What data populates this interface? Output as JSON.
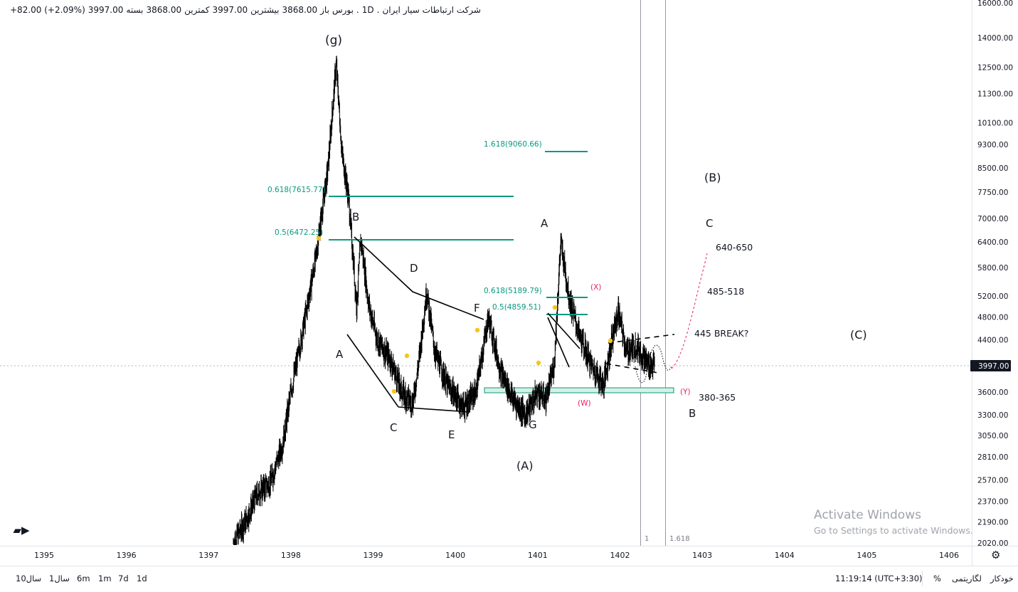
{
  "header": {
    "symbol": "شرکت ارتباطات سیار ایران",
    "interval": "1D",
    "exchange": "بورس",
    "open_label": "باز",
    "open_value": "3868.00",
    "high_label": "بیشترین",
    "high_value": "3997.00",
    "low_label": "کمترین",
    "low_value": "3868.00",
    "close_label": "بسته",
    "close_value": "3997.00",
    "change": "+82.00 (+2.09%)"
  },
  "colors": {
    "fib": "#089981",
    "pink": "#e91e63",
    "candles": "#000000",
    "yellow_marker": "#f5c518",
    "zone_fill": "#d8f0e4",
    "zone_stroke": "#089981"
  },
  "price_axis": {
    "labels": [
      "16000.00",
      "14000.00",
      "12500.00",
      "11300.00",
      "10100.00",
      "9300.00",
      "8500.00",
      "7750.00",
      "7000.00",
      "6400.00",
      "5800.00",
      "5200.00",
      "4800.00",
      "4400.00",
      "3600.00",
      "3300.00",
      "3050.00",
      "2810.00",
      "2570.00",
      "2370.00",
      "2190.00",
      "2020.00"
    ],
    "current_price": "3997.00"
  },
  "time_axis": {
    "labels": [
      "1395",
      "1396",
      "1397",
      "1398",
      "1399",
      "1400",
      "1401",
      "1402",
      "1403",
      "1404",
      "1405",
      "1406"
    ]
  },
  "fib_levels": [
    {
      "label": "0.618(7615.77)"
    },
    {
      "label": "0.5(6472.25)"
    },
    {
      "label": "1.618(9060.66)"
    },
    {
      "label": "0.618(5189.79)"
    },
    {
      "label": "0.5(4859.51)"
    }
  ],
  "wave_labels": {
    "g": "(g)",
    "A1": "A",
    "B1": "B",
    "C1": "C",
    "D1": "D",
    "E1": "E",
    "F1": "F",
    "G1": "G",
    "A_big": "(A)",
    "A2": "A",
    "B_big": "(B)",
    "C2": "C",
    "B2": "B",
    "C_big": "(C)",
    "W": "(W)",
    "X": "(X)",
    "Y": "(Y)"
  },
  "notes": {
    "n1": "640-650",
    "n2": "485-518",
    "n3": "445 BREAK?",
    "n4": "380-365"
  },
  "time_cycle": {
    "l1": "1",
    "l2": "1.618"
  },
  "watermark": {
    "line1": "Activate Windows",
    "line2": "Go to Settings to activate Windows."
  },
  "bottom_bar": {
    "timeframes": [
      "10سال",
      "1سال",
      "6m",
      "1m",
      "7d",
      "1d"
    ],
    "clock": "11:19:14 (UTC+3:30)",
    "percent": "%",
    "log": "لگاریتمی",
    "auto": "خودکار"
  },
  "chart_data": {
    "type": "candlestick",
    "title": "",
    "xlabel": "",
    "ylabel": "",
    "log_scale": true,
    "ylim": [
      2020,
      16000
    ],
    "x_range_years": [
      1394.9,
      1406.6
    ],
    "grid": false,
    "price_path": [
      [
        1397.3,
        2020
      ],
      [
        1397.45,
        2200
      ],
      [
        1397.6,
        2450
      ],
      [
        1397.75,
        2550
      ],
      [
        1397.9,
        2950
      ],
      [
        1398.0,
        3600
      ],
      [
        1398.15,
        4600
      ],
      [
        1398.3,
        6000
      ],
      [
        1398.45,
        8500
      ],
      [
        1398.55,
        12700
      ],
      [
        1398.62,
        9000
      ],
      [
        1398.7,
        7600
      ],
      [
        1398.8,
        5000
      ],
      [
        1398.85,
        6470
      ],
      [
        1398.95,
        5000
      ],
      [
        1399.05,
        4400
      ],
      [
        1399.2,
        4100
      ],
      [
        1399.35,
        3600
      ],
      [
        1399.48,
        3450
      ],
      [
        1399.55,
        4000
      ],
      [
        1399.65,
        5300
      ],
      [
        1399.75,
        4200
      ],
      [
        1399.9,
        3700
      ],
      [
        1400.1,
        3400
      ],
      [
        1400.25,
        3600
      ],
      [
        1400.4,
        4800
      ],
      [
        1400.55,
        3900
      ],
      [
        1400.7,
        3500
      ],
      [
        1400.85,
        3300
      ],
      [
        1401.0,
        3600
      ],
      [
        1401.1,
        3500
      ],
      [
        1401.2,
        4000
      ],
      [
        1401.28,
        6400
      ],
      [
        1401.38,
        5200
      ],
      [
        1401.5,
        4500
      ],
      [
        1401.65,
        4000
      ],
      [
        1401.8,
        3700
      ],
      [
        1401.9,
        4400
      ],
      [
        1401.98,
        4900
      ],
      [
        1402.08,
        4200
      ],
      [
        1402.2,
        4300
      ],
      [
        1402.35,
        4000
      ],
      [
        1402.42,
        3997
      ]
    ],
    "fib_levels": [
      {
        "label": "0.618(7615.77)",
        "price": 7615.77
      },
      {
        "label": "0.5(6472.25)",
        "price": 6472.25
      },
      {
        "label": "1.618(9060.66)",
        "price": 9060.66
      },
      {
        "label": "0.618(5189.79)",
        "price": 5189.79
      },
      {
        "label": "0.5(4859.51)",
        "price": 4859.51
      }
    ],
    "support_zone": [
      3600,
      3700
    ],
    "current_price": 3997,
    "projection_targets": [
      "640-650",
      "485-518",
      "445 BREAK?",
      "380-365"
    ]
  }
}
